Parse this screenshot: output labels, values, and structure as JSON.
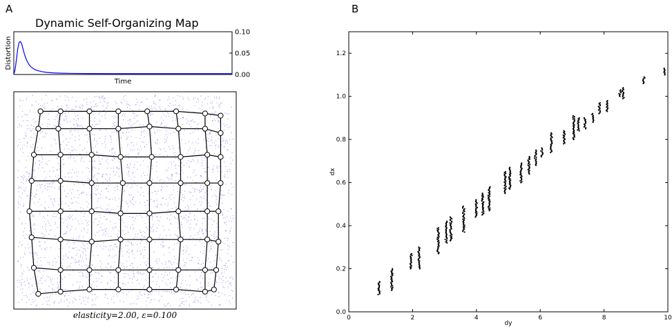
{
  "panels": {
    "a_letter": "A",
    "b_letter": "B"
  },
  "chart_data": [
    {
      "type": "line",
      "panel": "A",
      "title": "Dynamic Self-Organizing Map",
      "xlabel": "Time",
      "ylabel": "Distortion",
      "yticks": [
        "0.10",
        "0.05",
        "0.00"
      ],
      "ylim": [
        0,
        0.1
      ],
      "xlim": [
        0,
        100
      ],
      "y_axis_side": "right",
      "grid": false,
      "series": [
        {
          "color": "#0000ff",
          "x": [
            0,
            0.6,
            1.2,
            1.8,
            2.4,
            3.0,
            3.6,
            4.2,
            5.0,
            6.0,
            7.0,
            8.0,
            9.5,
            11,
            13,
            15,
            18,
            22,
            27,
            35,
            50,
            70,
            100
          ],
          "y": [
            0.0,
            0.012,
            0.035,
            0.06,
            0.075,
            0.077,
            0.072,
            0.06,
            0.045,
            0.032,
            0.023,
            0.017,
            0.012,
            0.009,
            0.0065,
            0.005,
            0.0038,
            0.003,
            0.0025,
            0.0022,
            0.002,
            0.002,
            0.002
          ]
        }
      ]
    },
    {
      "type": "network",
      "panel": "A",
      "caption": "elasticity=2.00, ε=0.100",
      "sample_color": "#7777ee",
      "grid_size": [
        8,
        8
      ],
      "nodes": [
        [
          [
            0.12,
            0.09
          ],
          [
            0.21,
            0.09
          ],
          [
            0.34,
            0.09
          ],
          [
            0.47,
            0.09
          ],
          [
            0.6,
            0.09
          ],
          [
            0.73,
            0.09
          ],
          [
            0.86,
            0.1
          ],
          [
            0.93,
            0.11
          ]
        ],
        [
          [
            0.11,
            0.17
          ],
          [
            0.2,
            0.17
          ],
          [
            0.34,
            0.17
          ],
          [
            0.47,
            0.17
          ],
          [
            0.61,
            0.16
          ],
          [
            0.74,
            0.17
          ],
          [
            0.86,
            0.17
          ],
          [
            0.93,
            0.19
          ]
        ],
        [
          [
            0.09,
            0.29
          ],
          [
            0.21,
            0.29
          ],
          [
            0.35,
            0.29
          ],
          [
            0.48,
            0.3
          ],
          [
            0.62,
            0.3
          ],
          [
            0.75,
            0.3
          ],
          [
            0.87,
            0.29
          ],
          [
            0.93,
            0.3
          ]
        ],
        [
          [
            0.08,
            0.41
          ],
          [
            0.21,
            0.41
          ],
          [
            0.35,
            0.42
          ],
          [
            0.49,
            0.42
          ],
          [
            0.61,
            0.42
          ],
          [
            0.75,
            0.42
          ],
          [
            0.87,
            0.42
          ],
          [
            0.93,
            0.42
          ]
        ],
        [
          [
            0.07,
            0.55
          ],
          [
            0.21,
            0.55
          ],
          [
            0.35,
            0.55
          ],
          [
            0.48,
            0.56
          ],
          [
            0.61,
            0.56
          ],
          [
            0.74,
            0.55
          ],
          [
            0.87,
            0.55
          ],
          [
            0.92,
            0.55
          ]
        ],
        [
          [
            0.08,
            0.67
          ],
          [
            0.21,
            0.68
          ],
          [
            0.35,
            0.69
          ],
          [
            0.48,
            0.68
          ],
          [
            0.61,
            0.68
          ],
          [
            0.75,
            0.68
          ],
          [
            0.87,
            0.68
          ],
          [
            0.92,
            0.69
          ]
        ],
        [
          [
            0.09,
            0.81
          ],
          [
            0.21,
            0.82
          ],
          [
            0.34,
            0.82
          ],
          [
            0.47,
            0.82
          ],
          [
            0.61,
            0.82
          ],
          [
            0.74,
            0.82
          ],
          [
            0.86,
            0.82
          ],
          [
            0.91,
            0.82
          ]
        ],
        [
          [
            0.11,
            0.93
          ],
          [
            0.21,
            0.92
          ],
          [
            0.34,
            0.91
          ],
          [
            0.47,
            0.91
          ],
          [
            0.61,
            0.91
          ],
          [
            0.73,
            0.91
          ],
          [
            0.86,
            0.92
          ],
          [
            0.9,
            0.91
          ]
        ]
      ]
    },
    {
      "type": "scatter",
      "panel": "B",
      "title": "",
      "xlabel": "dy",
      "ylabel": "dx",
      "xlim": [
        0,
        10
      ],
      "ylim": [
        0,
        1.3
      ],
      "xticks": [
        0,
        2,
        4,
        6,
        8,
        10
      ],
      "yticks": [
        0.0,
        0.2,
        0.4,
        0.6,
        0.8,
        1.0,
        1.2
      ],
      "xtick_labels": [
        "0",
        "2",
        "4",
        "6",
        "8",
        "10"
      ],
      "ytick_labels": [
        "0.0",
        "0.2",
        "0.4",
        "0.6",
        "0.8",
        "1.0",
        "1.2"
      ],
      "grid": false,
      "point_color": "#000000",
      "clusters": [
        {
          "x": 0.95,
          "y_min": 0.08,
          "y_max": 0.14
        },
        {
          "x": 1.35,
          "y_min": 0.1,
          "y_max": 0.2
        },
        {
          "x": 1.95,
          "y_min": 0.2,
          "y_max": 0.27
        },
        {
          "x": 2.2,
          "y_min": 0.2,
          "y_max": 0.3
        },
        {
          "x": 2.8,
          "y_min": 0.27,
          "y_max": 0.39
        },
        {
          "x": 3.05,
          "y_min": 0.32,
          "y_max": 0.42
        },
        {
          "x": 3.2,
          "y_min": 0.33,
          "y_max": 0.44
        },
        {
          "x": 3.6,
          "y_min": 0.37,
          "y_max": 0.49
        },
        {
          "x": 4.0,
          "y_min": 0.44,
          "y_max": 0.52
        },
        {
          "x": 4.2,
          "y_min": 0.45,
          "y_max": 0.55
        },
        {
          "x": 4.4,
          "y_min": 0.47,
          "y_max": 0.58
        },
        {
          "x": 4.9,
          "y_min": 0.55,
          "y_max": 0.65
        },
        {
          "x": 5.05,
          "y_min": 0.57,
          "y_max": 0.67
        },
        {
          "x": 5.4,
          "y_min": 0.6,
          "y_max": 0.69
        },
        {
          "x": 5.65,
          "y_min": 0.64,
          "y_max": 0.72
        },
        {
          "x": 5.85,
          "y_min": 0.68,
          "y_max": 0.75
        },
        {
          "x": 6.05,
          "y_min": 0.72,
          "y_max": 0.76
        },
        {
          "x": 6.35,
          "y_min": 0.74,
          "y_max": 0.83
        },
        {
          "x": 6.75,
          "y_min": 0.78,
          "y_max": 0.84
        },
        {
          "x": 7.05,
          "y_min": 0.8,
          "y_max": 0.91
        },
        {
          "x": 7.2,
          "y_min": 0.84,
          "y_max": 0.9
        },
        {
          "x": 7.4,
          "y_min": 0.85,
          "y_max": 0.9
        },
        {
          "x": 7.65,
          "y_min": 0.88,
          "y_max": 0.92
        },
        {
          "x": 7.85,
          "y_min": 0.92,
          "y_max": 0.97
        },
        {
          "x": 8.1,
          "y_min": 0.93,
          "y_max": 0.98
        },
        {
          "x": 8.5,
          "y_min": 1.0,
          "y_max": 1.03
        },
        {
          "x": 8.6,
          "y_min": 0.99,
          "y_max": 1.04
        },
        {
          "x": 9.25,
          "y_min": 1.06,
          "y_max": 1.09
        },
        {
          "x": 9.9,
          "y_min": 1.1,
          "y_max": 1.13
        }
      ]
    }
  ]
}
